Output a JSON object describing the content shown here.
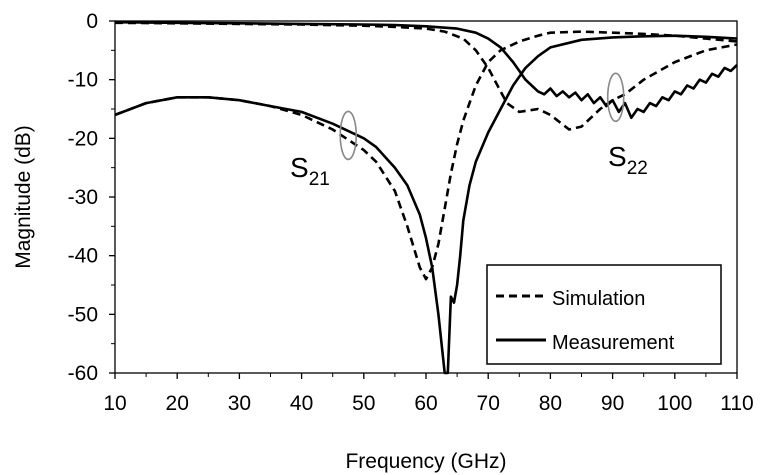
{
  "chart_data": {
    "type": "line",
    "xlabel": "Frequency (GHz)",
    "ylabel": "Magnitude (dB)",
    "xlim": [
      10,
      110
    ],
    "ylim": [
      -60,
      0
    ],
    "x_ticks": [
      "10",
      "20",
      "30",
      "40",
      "50",
      "60",
      "70",
      "80",
      "90",
      "100",
      "110"
    ],
    "y_ticks": [
      "0",
      "-10",
      "-20",
      "-30",
      "-40",
      "-50",
      "-60"
    ],
    "grid": false,
    "legend_position": "bottom-right",
    "legend": [
      {
        "label": "Simulation",
        "style": "dashed"
      },
      {
        "label": "Measurement",
        "style": "solid"
      }
    ],
    "annotations": [
      {
        "text": "S",
        "sub": "21",
        "at": [
          47.5,
          -20
        ]
      },
      {
        "text": "S",
        "sub": "22",
        "at": [
          90.5,
          -13
        ]
      }
    ],
    "series": [
      {
        "style": "dashed",
        "parameter": "S21",
        "x": [
          10,
          15,
          20,
          25,
          30,
          35,
          40,
          45,
          50,
          52,
          55,
          57,
          59,
          60,
          61,
          62,
          63,
          64,
          65,
          66,
          67,
          68,
          70,
          72,
          75,
          78,
          80,
          85,
          90,
          95,
          100,
          105,
          110
        ],
        "y": [
          -16,
          -14,
          -13,
          -13,
          -13.5,
          -14.5,
          -16,
          -18.5,
          -22,
          -24,
          -29,
          -35,
          -42,
          -44,
          -42,
          -38,
          -32,
          -26,
          -21,
          -17,
          -14,
          -11,
          -7,
          -5,
          -3.5,
          -2.5,
          -2,
          -1.8,
          -2,
          -2.2,
          -2.5,
          -3,
          -3.5
        ]
      },
      {
        "style": "solid",
        "parameter": "S21",
        "x": [
          10,
          15,
          20,
          25,
          30,
          35,
          40,
          45,
          50,
          52,
          55,
          57,
          59,
          60,
          61,
          62,
          63,
          63.5,
          64,
          64.5,
          65,
          65.5,
          66,
          67,
          68,
          70,
          72,
          74,
          76,
          78,
          80,
          85,
          90,
          95,
          100,
          105,
          110
        ],
        "y": [
          -16,
          -14,
          -13,
          -13,
          -13.5,
          -14.5,
          -15.5,
          -17.5,
          -20,
          -21.5,
          -25,
          -28,
          -33,
          -37,
          -42,
          -50,
          -60,
          -60,
          -47,
          -48,
          -45,
          -40,
          -34,
          -28,
          -24,
          -19,
          -15,
          -11,
          -8,
          -6,
          -4.5,
          -3.2,
          -2.8,
          -2.6,
          -2.5,
          -2.7,
          -3
        ]
      },
      {
        "style": "dashed",
        "parameter": "S22",
        "x": [
          10,
          20,
          30,
          40,
          50,
          55,
          60,
          63,
          66,
          68,
          70,
          72,
          73,
          75,
          78,
          80,
          83,
          85,
          88,
          90,
          92,
          95,
          100,
          105,
          110
        ],
        "y": [
          -0.3,
          -0.4,
          -0.5,
          -0.6,
          -0.8,
          -1,
          -1.3,
          -1.8,
          -3,
          -5,
          -8,
          -12,
          -14,
          -15.5,
          -15,
          -16,
          -18.5,
          -18,
          -15,
          -13.5,
          -12.5,
          -10,
          -7,
          -5,
          -4
        ]
      },
      {
        "style": "solid",
        "parameter": "S22",
        "x": [
          10,
          20,
          30,
          40,
          50,
          55,
          60,
          65,
          68,
          70,
          72,
          74,
          75,
          76,
          77,
          78,
          79,
          80,
          81,
          82,
          83,
          84,
          85,
          86,
          87,
          88,
          89,
          90,
          91,
          92,
          93,
          94,
          95,
          96,
          97,
          98,
          99,
          100,
          101,
          102,
          103,
          104,
          105,
          106,
          107,
          108,
          109,
          110
        ],
        "y": [
          -0.2,
          -0.3,
          -0.4,
          -0.5,
          -0.6,
          -0.7,
          -0.9,
          -1.3,
          -2,
          -3,
          -4.5,
          -7,
          -8.5,
          -10,
          -11,
          -12,
          -12.5,
          -11.5,
          -12.8,
          -12,
          -13,
          -12.2,
          -13.5,
          -12.5,
          -14,
          -13,
          -14.5,
          -13.5,
          -15.5,
          -14,
          -16.5,
          -15,
          -15.5,
          -14,
          -14.5,
          -13,
          -13.5,
          -12,
          -12.5,
          -11,
          -11.5,
          -10,
          -10.5,
          -9,
          -9.5,
          -8,
          -8.5,
          -7.5
        ]
      }
    ]
  }
}
